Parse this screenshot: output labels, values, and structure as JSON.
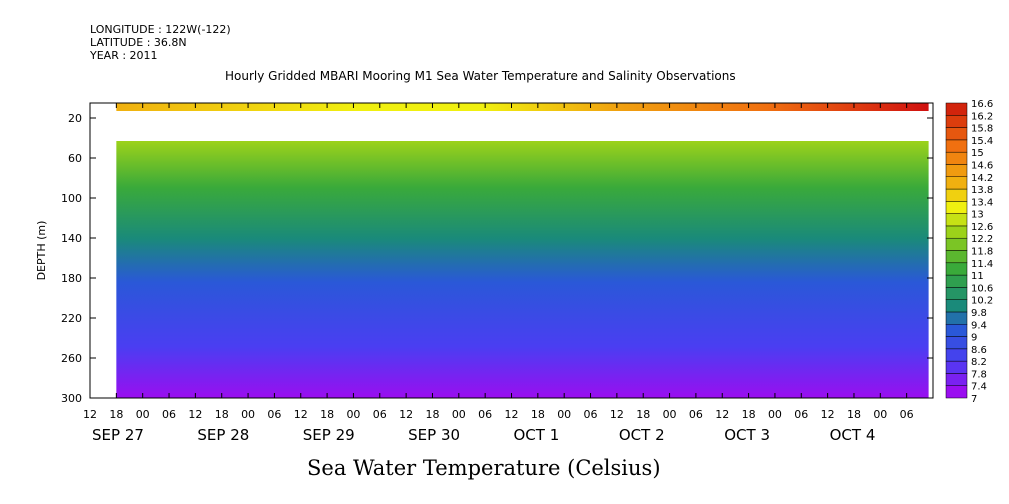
{
  "chart_data": {
    "type": "heatmap",
    "header_lines": [
      "LONGITUDE : 122W(-122)",
      "LATITUDE : 36.8N",
      "YEAR : 2011"
    ],
    "title": "Hourly Gridded MBARI Mooring M1 Sea Water Temperature and Salinity Observations",
    "xlabel": "Sea Water Temperature (Celsius)",
    "ylabel": "DEPTH (m)",
    "x_hour_ticks": [
      "12",
      "18",
      "00",
      "06",
      "12",
      "18",
      "00",
      "06",
      "12",
      "18",
      "00",
      "06",
      "12",
      "18",
      "00",
      "06",
      "12",
      "18",
      "00",
      "06",
      "12",
      "18",
      "00",
      "06",
      "12",
      "18",
      "00",
      "06",
      "12",
      "18",
      "00",
      "06"
    ],
    "x_day_labels": [
      "SEP 27",
      "SEP 28",
      "SEP 29",
      "SEP 30",
      "OCT  1",
      "OCT  2",
      "OCT  3",
      "OCT  4"
    ],
    "x_day_index": [
      0,
      1,
      2,
      3,
      4,
      5,
      6,
      7
    ],
    "x_start_offset_hours": 0,
    "y_ticks": [
      20,
      60,
      100,
      140,
      180,
      220,
      260,
      300
    ],
    "ylim": [
      5,
      300
    ],
    "data_time_range_hours": [
      6,
      191
    ],
    "profile": {
      "depth": [
        10,
        20,
        40,
        60,
        100,
        140,
        180,
        220,
        260,
        300
      ],
      "temperature": [
        13.8,
        13.2,
        12.4,
        11.6,
        10.4,
        9.7,
        9.0,
        8.4,
        7.9,
        7.3
      ]
    },
    "gap_depths": [
      20,
      40
    ],
    "colorbar_levels": [
      7,
      7.4,
      7.8,
      8.2,
      8.6,
      9,
      9.4,
      9.8,
      10.2,
      10.6,
      11,
      11.4,
      11.8,
      12.2,
      12.6,
      13,
      13.4,
      13.8,
      14.2,
      14.6,
      15,
      15.4,
      15.8,
      16.2,
      16.6
    ],
    "colorbar_labels": [
      "16.6",
      "16.2",
      "15.8",
      "15.4",
      "15",
      "14.6",
      "14.2",
      "13.8",
      "13.4",
      "13",
      "12.6",
      "12.2",
      "11.8",
      "11.4",
      "11",
      "10.6",
      "10.2",
      "9.8",
      "9.4",
      "9",
      "8.6",
      "8.2",
      "7.8",
      "7.4",
      "7"
    ],
    "colors": {
      "7": "#9a0ef0",
      "8": "#4a3ef2",
      "9": "#2a58d8",
      "9.8": "#1a8a7a",
      "11": "#3aaa3a",
      "12.2": "#9cd21a",
      "13": "#f0f010",
      "13.8": "#f0b010",
      "15": "#f07010",
      "16.6": "#c80a0a"
    }
  }
}
